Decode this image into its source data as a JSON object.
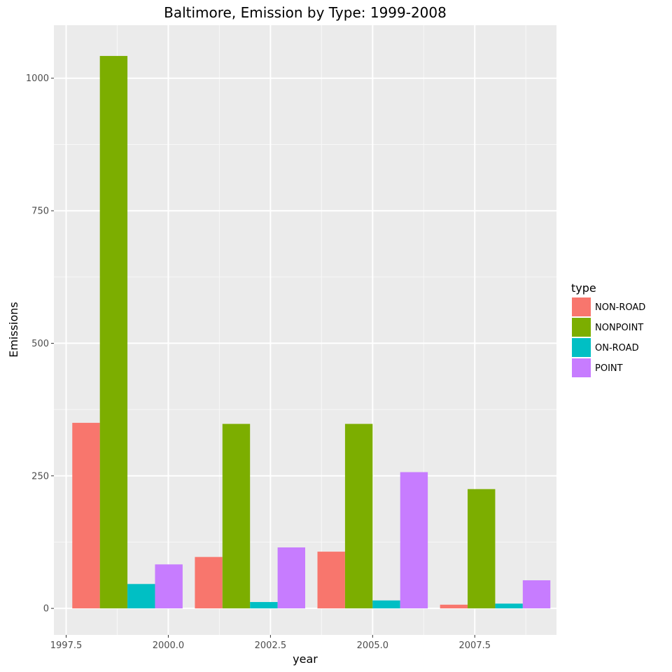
{
  "chart_data": {
    "type": "bar",
    "title": "Baltimore, Emission by Type: 1999-2008",
    "xlabel": "year",
    "ylabel": "Emissions",
    "x": [
      1999,
      2002,
      2005,
      2008
    ],
    "xlim": [
      1997.2,
      2009.5
    ],
    "ylim": [
      -50,
      1100
    ],
    "x_ticks": [
      1997.5,
      2000.0,
      2002.5,
      2005.0,
      2007.5
    ],
    "x_tick_labels": [
      "1997.5",
      "2000.0",
      "2002.5",
      "2005.0",
      "2007.5"
    ],
    "y_ticks": [
      0,
      250,
      500,
      750,
      1000
    ],
    "y_tick_labels": [
      "0",
      "250",
      "500",
      "750",
      "1000"
    ],
    "bar_group_width": 2.7,
    "grid": true,
    "legend": {
      "title": "type",
      "position": "right"
    },
    "series": [
      {
        "name": "NON-ROAD",
        "color": "#f8766d",
        "values": [
          350,
          97,
          107,
          7
        ]
      },
      {
        "name": "NONPOINT",
        "color": "#7cae00",
        "values": [
          1042,
          348,
          348,
          225
        ]
      },
      {
        "name": "ON-ROAD",
        "color": "#00bfc4",
        "values": [
          46,
          12,
          15,
          9
        ]
      },
      {
        "name": "POINT",
        "color": "#c77cff",
        "values": [
          83,
          115,
          257,
          53
        ]
      }
    ]
  }
}
